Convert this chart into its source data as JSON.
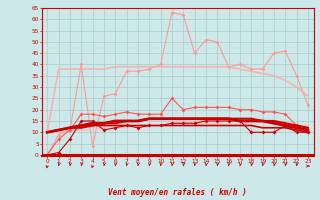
{
  "x": [
    0,
    1,
    2,
    3,
    4,
    5,
    6,
    7,
    8,
    9,
    10,
    11,
    12,
    13,
    14,
    15,
    16,
    17,
    18,
    19,
    20,
    21,
    22,
    23
  ],
  "series": [
    {
      "name": "rafales_high",
      "color": "#ff9999",
      "alpha": 1.0,
      "lw": 0.8,
      "ms": 2.0,
      "y": [
        0,
        9,
        11,
        40,
        4,
        26,
        27,
        37,
        37,
        38,
        40,
        63,
        62,
        45,
        51,
        50,
        39,
        40,
        38,
        38,
        45,
        46,
        35,
        22
      ]
    },
    {
      "name": "trend_high",
      "color": "#ffaaaa",
      "alpha": 0.85,
      "lw": 1.2,
      "ms": 0,
      "y": [
        10,
        38,
        38,
        38,
        38,
        38,
        39,
        39,
        39,
        39,
        39,
        39,
        39,
        39,
        39,
        39,
        39,
        38,
        37,
        36,
        35,
        33,
        30,
        26
      ]
    },
    {
      "name": "trend_low",
      "color": "#ffbbbb",
      "alpha": 0.8,
      "lw": 1.0,
      "ms": 0,
      "y": [
        10,
        10,
        11,
        11,
        11,
        12,
        12,
        12,
        13,
        13,
        13,
        14,
        14,
        14,
        14,
        14,
        15,
        15,
        15,
        14,
        14,
        13,
        13,
        13
      ]
    },
    {
      "name": "moyen_high",
      "color": "#ff5555",
      "alpha": 1.0,
      "lw": 0.8,
      "ms": 2.0,
      "y": [
        0,
        7,
        11,
        18,
        18,
        17,
        18,
        19,
        18,
        18,
        18,
        25,
        20,
        21,
        21,
        21,
        21,
        20,
        20,
        19,
        19,
        18,
        13,
        10
      ]
    },
    {
      "name": "moyen_mid1",
      "color": "#cc0000",
      "alpha": 1.0,
      "lw": 1.5,
      "ms": 0,
      "y": [
        10,
        11,
        12,
        12,
        13,
        14,
        14,
        15,
        15,
        16,
        16,
        16,
        16,
        16,
        16,
        16,
        16,
        16,
        16,
        15,
        15,
        14,
        13,
        12
      ]
    },
    {
      "name": "moyen_mid2",
      "color": "#cc0000",
      "alpha": 1.0,
      "lw": 2.0,
      "ms": 0,
      "y": [
        10,
        11,
        12,
        13,
        14,
        14,
        15,
        15,
        15,
        16,
        16,
        16,
        16,
        16,
        16,
        16,
        16,
        15,
        15,
        15,
        14,
        13,
        12,
        11
      ]
    },
    {
      "name": "moyen_low",
      "color": "#cc0000",
      "alpha": 1.0,
      "lw": 0.8,
      "ms": 2.0,
      "y": [
        0,
        1,
        7,
        15,
        15,
        11,
        12,
        13,
        12,
        13,
        13,
        14,
        14,
        14,
        15,
        15,
        15,
        15,
        10,
        10,
        10,
        13,
        10,
        10
      ]
    },
    {
      "name": "flat_line",
      "color": "#cc0000",
      "alpha": 1.0,
      "lw": 1.2,
      "ms": 0,
      "y": [
        10,
        11,
        12,
        13,
        13,
        13,
        13,
        13,
        13,
        13,
        13,
        13,
        13,
        13,
        13,
        13,
        13,
        13,
        13,
        12,
        12,
        12,
        11,
        10
      ]
    }
  ],
  "wind_dirs": [
    208,
    200,
    195,
    200,
    220,
    200,
    195,
    195,
    195,
    195,
    195,
    195,
    195,
    195,
    195,
    195,
    195,
    200,
    200,
    200,
    200,
    195,
    195,
    90
  ],
  "xlabel": "Vent moyen/en rafales ( km/h )",
  "yticks": [
    0,
    5,
    10,
    15,
    20,
    25,
    30,
    35,
    40,
    45,
    50,
    55,
    60,
    65
  ],
  "xlim": [
    -0.5,
    23.5
  ],
  "ylim": [
    -0.5,
    65
  ],
  "bg_color": "#cce8e8",
  "grid_color": "#aacccc",
  "tick_color": "#cc0000",
  "xlabel_color": "#cc0000",
  "xlabel_fontsize": 5.5,
  "tick_fontsize": 4.2
}
